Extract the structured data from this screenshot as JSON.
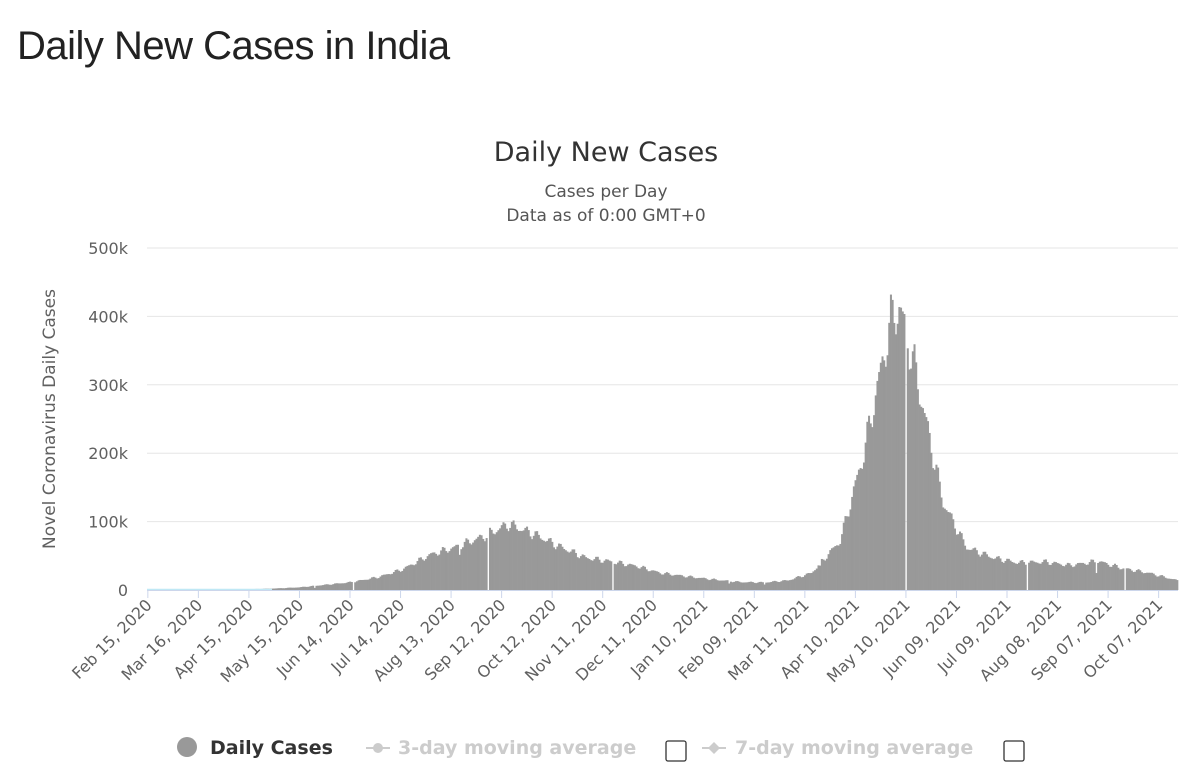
{
  "page": {
    "heading": "Daily New Cases in India"
  },
  "chart_data": {
    "type": "bar",
    "title": "Daily New Cases",
    "subtitle": "Cases per Day",
    "subtitle2": "Data as of 0:00 GMT+0",
    "ylabel": "Novel Coronavirus Daily Cases",
    "xlabel": "",
    "ylim": [
      0,
      500000
    ],
    "yticks": [
      0,
      100000,
      200000,
      300000,
      400000,
      500000
    ],
    "ytick_labels": [
      "0",
      "100k",
      "200k",
      "300k",
      "400k",
      "500k"
    ],
    "xlim": [
      "2020-02-15",
      "2021-10-18"
    ],
    "x_tick_labels": [
      "Feb 15, 2020",
      "Mar 16, 2020",
      "Apr 15, 2020",
      "May 15, 2020",
      "Jun 14, 2020",
      "Jul 14, 2020",
      "Aug 13, 2020",
      "Sep 12, 2020",
      "Oct 12, 2020",
      "Nov 11, 2020",
      "Dec 11, 2020",
      "Jan 10, 2021",
      "Feb 09, 2021",
      "Mar 11, 2021",
      "Apr 10, 2021",
      "May 10, 2021",
      "Jun 09, 2021",
      "Jul 09, 2021",
      "Aug 08, 2021",
      "Sep 07, 2021",
      "Oct 07, 2021"
    ],
    "bar_color": "#999999",
    "grid": true,
    "legend_position": "bottom",
    "series": [
      {
        "name": "Daily Cases",
        "points": [
          [
            "2020-02-15",
            0
          ],
          [
            "2020-03-15",
            100
          ],
          [
            "2020-04-01",
            500
          ],
          [
            "2020-04-15",
            1200
          ],
          [
            "2020-05-01",
            2300
          ],
          [
            "2020-05-15",
            3900
          ],
          [
            "2020-06-01",
            8000
          ],
          [
            "2020-06-15",
            11500
          ],
          [
            "2020-07-01",
            19000
          ],
          [
            "2020-07-15",
            30000
          ],
          [
            "2020-08-01",
            52000
          ],
          [
            "2020-08-15",
            62000
          ],
          [
            "2020-09-01",
            78000
          ],
          [
            "2020-09-16",
            96000
          ],
          [
            "2020-10-01",
            82000
          ],
          [
            "2020-10-15",
            65000
          ],
          [
            "2020-11-01",
            47000
          ],
          [
            "2020-11-15",
            42000
          ],
          [
            "2020-12-01",
            35000
          ],
          [
            "2020-12-15",
            25000
          ],
          [
            "2021-01-01",
            19500
          ],
          [
            "2021-01-15",
            15500
          ],
          [
            "2021-02-01",
            11500
          ],
          [
            "2021-02-15",
            11000
          ],
          [
            "2021-03-01",
            14000
          ],
          [
            "2021-03-15",
            25000
          ],
          [
            "2021-04-01",
            72000
          ],
          [
            "2021-04-15",
            200000
          ],
          [
            "2021-05-01",
            392000
          ],
          [
            "2021-05-06",
            414000
          ],
          [
            "2021-05-15",
            326000
          ],
          [
            "2021-06-01",
            128000
          ],
          [
            "2021-06-15",
            62000
          ],
          [
            "2021-07-01",
            47000
          ],
          [
            "2021-07-15",
            40000
          ],
          [
            "2021-08-01",
            41000
          ],
          [
            "2021-08-15",
            36000
          ],
          [
            "2021-09-01",
            42000
          ],
          [
            "2021-09-15",
            32000
          ],
          [
            "2021-10-01",
            25000
          ],
          [
            "2021-10-18",
            14000
          ]
        ]
      }
    ],
    "gap_dates": [
      "2020-06-16",
      "2020-09-04",
      "2020-11-17",
      "2021-05-10",
      "2021-07-21",
      "2021-09-17"
    ],
    "dips": [
      [
        "2020-05-24",
        0.5
      ],
      [
        "2020-08-18",
        0.82
      ],
      [
        "2021-01-25",
        0.7
      ],
      [
        "2021-02-15",
        0.75
      ],
      [
        "2021-03-20",
        0.85
      ],
      [
        "2021-08-31",
        0.65
      ]
    ]
  },
  "legend": {
    "items": [
      {
        "label": "Daily Cases",
        "active": true
      },
      {
        "label": "3-day moving average",
        "active": false
      },
      {
        "label": "7-day moving average",
        "active": false
      }
    ]
  },
  "colors": {
    "legend_inactive": "#cccccc",
    "gridline": "#e6e6e6",
    "axis_line": "#ccd6eb",
    "day_zero": "#bfe8f5"
  }
}
